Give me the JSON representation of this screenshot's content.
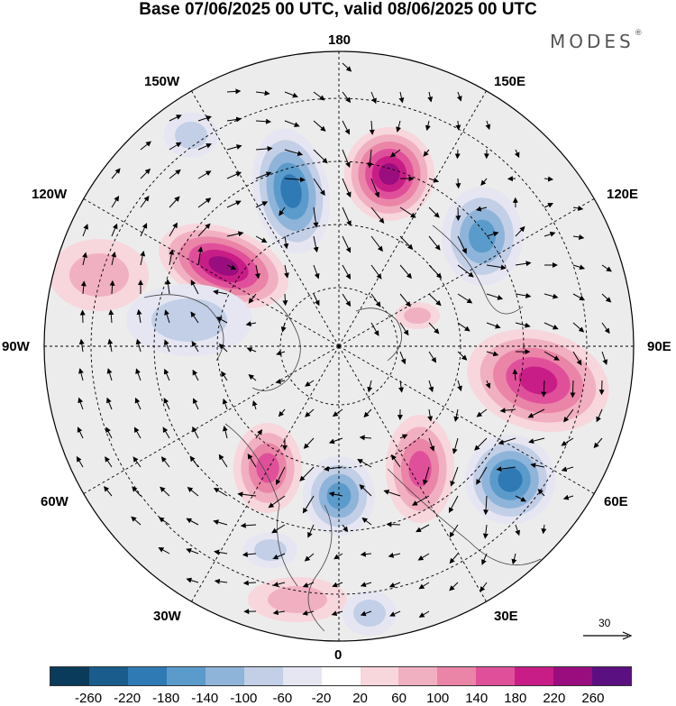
{
  "title": "Base 07/06/2025 00 UTC, valid 08/06/2025 00 UTC",
  "brand": {
    "text": "MODES",
    "mark": "®"
  },
  "longitude_labels": {
    "top": "180",
    "bottom": "0",
    "left": "90W",
    "right": "90E",
    "upper_left": "150W",
    "upper_right": "150E",
    "mid_upper_left": "120W",
    "mid_upper_right": "120E",
    "mid_lower_left": "60W",
    "mid_lower_right": "60E",
    "lower_left": "30W",
    "lower_right": "30E"
  },
  "vector_scale": {
    "label": "30"
  },
  "colorbar": {
    "colors": [
      "#0a3b5a",
      "#1a5d8c",
      "#2f7ab5",
      "#5b9bcb",
      "#8fb4d9",
      "#c2cfe6",
      "#e6e6f2",
      "#ffffff",
      "#f7d6dc",
      "#f1b0c1",
      "#ea85a8",
      "#e0509a",
      "#c81d86",
      "#9a0d7e",
      "#5a1080"
    ],
    "ticks": [
      "-260",
      "-220",
      "-180",
      "-140",
      "-100",
      "-60",
      "-20",
      "20",
      "60",
      "100",
      "140",
      "180",
      "220",
      "260"
    ]
  },
  "anomalies": [
    {
      "sign": "neg",
      "level": 4
    },
    {
      "sign": "pos",
      "level": 5
    },
    {
      "sign": "pos",
      "level": 5
    },
    {
      "sign": "neg",
      "level": 3
    },
    {
      "sign": "pos",
      "level": 4
    },
    {
      "sign": "neg",
      "level": 4
    },
    {
      "sign": "pos",
      "level": 3
    },
    {
      "sign": "neg",
      "level": 3
    },
    {
      "sign": "pos",
      "level": 3
    },
    {
      "sign": "neg",
      "level": 1
    },
    {
      "sign": "neg",
      "level": 1
    },
    {
      "sign": "pos",
      "level": 1
    },
    {
      "sign": "pos",
      "level": 1
    },
    {
      "sign": "neg",
      "level": 1
    },
    {
      "sign": "pos",
      "level": 1
    },
    {
      "sign": "neg",
      "level": 1
    }
  ]
}
